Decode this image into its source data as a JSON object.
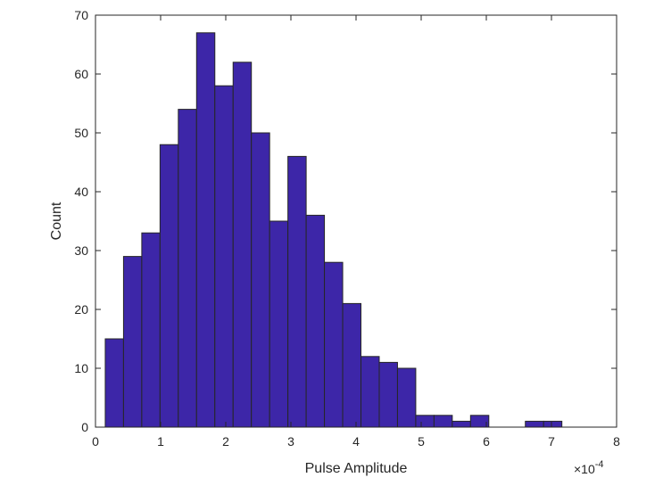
{
  "chart_data": {
    "type": "bar",
    "subtype": "histogram",
    "title": "",
    "xlabel": "Pulse Amplitude",
    "ylabel": "Count",
    "x_multiplier_label": "×10",
    "x_multiplier_exponent": "-4",
    "xlim": [
      0,
      8
    ],
    "ylim": [
      0,
      70
    ],
    "xticks": [
      "0",
      "1",
      "2",
      "3",
      "4",
      "5",
      "6",
      "7",
      "8"
    ],
    "yticks": [
      "0",
      "10",
      "20",
      "30",
      "40",
      "50",
      "60",
      "70"
    ],
    "bin_start": 0.15,
    "bin_width": 0.2804,
    "values": [
      15,
      29,
      33,
      48,
      54,
      67,
      58,
      62,
      50,
      35,
      46,
      36,
      28,
      21,
      12,
      11,
      10,
      2,
      2,
      1,
      2,
      0,
      0,
      1,
      1
    ],
    "bar_color": "#3d26a8",
    "edge_color": "#262626",
    "grid": false,
    "legend": "none"
  }
}
